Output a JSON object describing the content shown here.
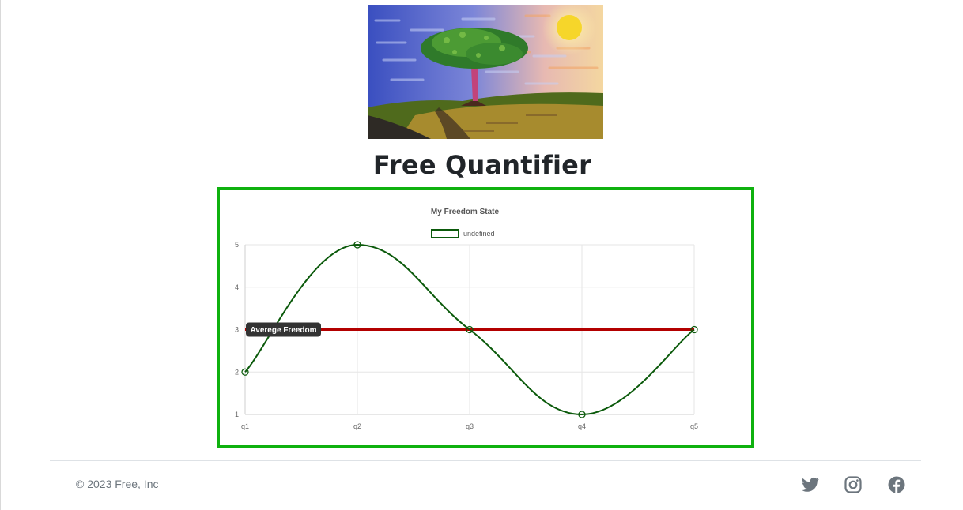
{
  "page": {
    "title": "Free Quantifier"
  },
  "hero": {
    "icon": "tree-sunset-painting"
  },
  "chart_data": {
    "type": "line",
    "title": "My Freedom State",
    "categories": [
      "q1",
      "q2",
      "q3",
      "q4",
      "q5"
    ],
    "series": [
      {
        "name": "undefined",
        "values": [
          2,
          5,
          3,
          1,
          3
        ],
        "color": "#0b5a0b"
      }
    ],
    "reference_line": {
      "label": "Averege Freedom",
      "value": 3,
      "color": "#b30000"
    },
    "ylim": [
      1,
      5
    ],
    "yticks": [
      1,
      2,
      3,
      4,
      5
    ],
    "xlabel": "",
    "ylabel": "",
    "grid": true,
    "legend": "top-center"
  },
  "colors": {
    "frame": "#0fb10f",
    "line": "#0b5a0b",
    "average": "#b30000"
  },
  "footer": {
    "copyright": "© 2023 Free, Inc",
    "social": [
      {
        "name": "twitter-icon"
      },
      {
        "name": "instagram-icon"
      },
      {
        "name": "facebook-icon"
      }
    ]
  }
}
